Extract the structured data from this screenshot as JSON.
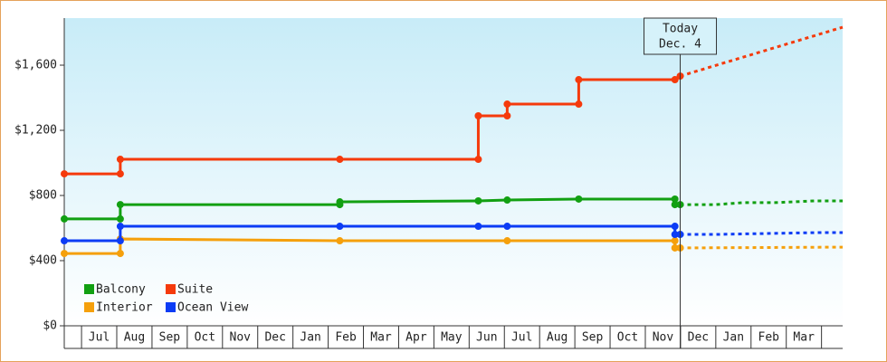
{
  "chart_data": {
    "type": "step-line",
    "xlim": [
      0.51,
      22.6
    ],
    "ylim": [
      0,
      1889
    ],
    "yticks": [
      {
        "value": 0,
        "label": "$0"
      },
      {
        "value": 400,
        "label": "$400"
      },
      {
        "value": 800,
        "label": "$800"
      },
      {
        "value": 1200,
        "label": "$1,200"
      },
      {
        "value": 1600,
        "label": "$1,600"
      }
    ],
    "xticks": [
      {
        "value": 1.5,
        "label": "Jul"
      },
      {
        "value": 2.5,
        "label": "Aug"
      },
      {
        "value": 3.5,
        "label": "Sep"
      },
      {
        "value": 4.5,
        "label": "Oct"
      },
      {
        "value": 5.5,
        "label": "Nov"
      },
      {
        "value": 6.5,
        "label": "Dec"
      },
      {
        "value": 7.5,
        "label": "Jan"
      },
      {
        "value": 8.5,
        "label": "Feb"
      },
      {
        "value": 9.5,
        "label": "Mar"
      },
      {
        "value": 10.5,
        "label": "Apr"
      },
      {
        "value": 11.5,
        "label": "May"
      },
      {
        "value": 12.5,
        "label": "Jun"
      },
      {
        "value": 13.5,
        "label": "Jul"
      },
      {
        "value": 14.5,
        "label": "Aug"
      },
      {
        "value": 15.5,
        "label": "Sep"
      },
      {
        "value": 16.5,
        "label": "Oct"
      },
      {
        "value": 17.5,
        "label": "Nov"
      },
      {
        "value": 18.5,
        "label": "Dec"
      },
      {
        "value": 19.5,
        "label": "Jan"
      },
      {
        "value": 20.5,
        "label": "Feb"
      },
      {
        "value": 21.5,
        "label": "Mar"
      }
    ],
    "today": {
      "x": 17.99,
      "label": "Today",
      "date": "Dec. 4"
    },
    "series": [
      {
        "name": "Balcony",
        "color": "#12a012",
        "x": [
          0.51,
          2.1,
          2.1,
          8.33,
          8.33,
          12.26,
          13.08,
          15.11,
          17.84,
          17.84,
          17.99
        ],
        "values": [
          656,
          656,
          744,
          744,
          761,
          767,
          772,
          778,
          778,
          744,
          744
        ],
        "forecast": {
          "x": [
            17.99,
            19.0,
            19.77,
            20.67,
            21.82,
            22.6
          ],
          "values": [
            744,
            744,
            756,
            756,
            767,
            767
          ]
        }
      },
      {
        "name": "Suite",
        "color": "#f53a0c",
        "x": [
          0.51,
          2.1,
          2.1,
          8.33,
          12.26,
          12.26,
          13.08,
          13.08,
          15.11,
          15.11,
          17.84,
          17.99
        ],
        "values": [
          933,
          933,
          1022,
          1022,
          1022,
          1289,
          1289,
          1361,
          1361,
          1511,
          1511,
          1533
        ],
        "forecast": {
          "x": [
            17.99,
            22.6
          ],
          "values": [
            1533,
            1833
          ]
        }
      },
      {
        "name": "Interior",
        "color": "#f5a00c",
        "x": [
          0.51,
          2.1,
          2.1,
          8.33,
          13.08,
          17.84,
          17.84,
          17.99
        ],
        "values": [
          444,
          444,
          533,
          522,
          522,
          522,
          478,
          478
        ],
        "forecast": {
          "x": [
            17.99,
            22.6
          ],
          "values": [
            478,
            483
          ]
        }
      },
      {
        "name": "Ocean View",
        "color": "#0c3cf5",
        "x": [
          0.51,
          2.1,
          2.1,
          8.33,
          12.26,
          13.08,
          17.84,
          17.84,
          17.99
        ],
        "values": [
          522,
          522,
          611,
          611,
          611,
          611,
          611,
          561,
          561
        ],
        "forecast": {
          "x": [
            17.99,
            19.0,
            21.82,
            22.6
          ],
          "values": [
            561,
            561,
            572,
            572
          ]
        }
      }
    ]
  }
}
